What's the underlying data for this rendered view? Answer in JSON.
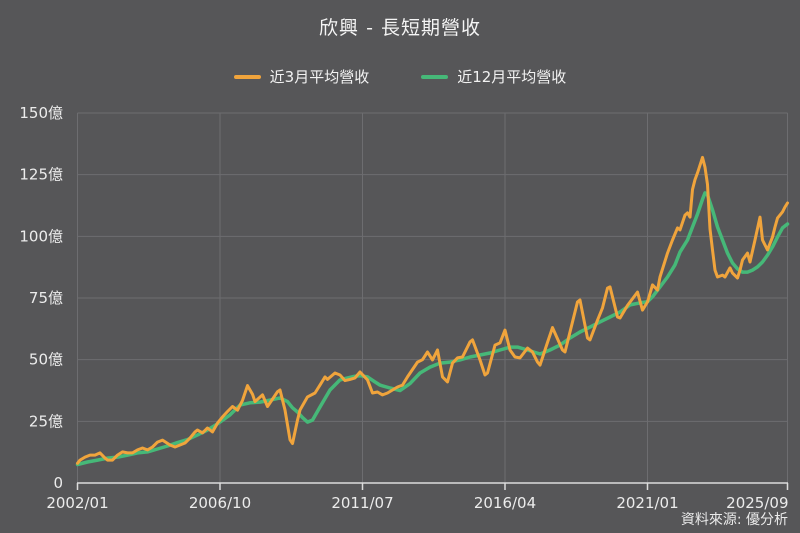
{
  "title": "欣興 - 長短期營收",
  "footer": {
    "source_label": "資料來源: 優分析"
  },
  "colors": {
    "background": "#565658",
    "grid": "#6d6d70",
    "axis": "#dcdcdc",
    "label_text": "#ececec",
    "title_text": "#f5f5f5",
    "series_orange": "#f0a43c",
    "series_green": "#46b878"
  },
  "chart_data": {
    "type": "line",
    "title": "欣興 - 長短期營收",
    "unit": "億",
    "grid": true,
    "legend_position": "top-center",
    "x_axis": {
      "unit": "month (offset from 2002/01)",
      "ticks": [
        {
          "m": 0,
          "label": "2002/01"
        },
        {
          "m": 57,
          "label": "2006/10"
        },
        {
          "m": 114,
          "label": "2011/07"
        },
        {
          "m": 171,
          "label": "2016/04"
        },
        {
          "m": 228,
          "label": "2021/01"
        },
        {
          "m": 284,
          "label": "2025/09"
        }
      ]
    },
    "y_axis": {
      "min": 0,
      "max": 150,
      "tick_step": 25,
      "tick_labels": [
        "0",
        "25億",
        "50億",
        "75億",
        "100億",
        "125億",
        "150億"
      ]
    },
    "series": [
      {
        "name": "近3月平均營收",
        "color": "#f0a43c",
        "points": [
          [
            0,
            8
          ],
          [
            1,
            9.3
          ],
          [
            3,
            10.5
          ],
          [
            5,
            11.3
          ],
          [
            7,
            11.3
          ],
          [
            9,
            12.2
          ],
          [
            11,
            10.1
          ],
          [
            12,
            9.3
          ],
          [
            14,
            9.3
          ],
          [
            16,
            11.3
          ],
          [
            18,
            12.6
          ],
          [
            20,
            12.2
          ],
          [
            22,
            12.2
          ],
          [
            24,
            13.4
          ],
          [
            26,
            14.2
          ],
          [
            28,
            13.4
          ],
          [
            30,
            14.6
          ],
          [
            32,
            16.6
          ],
          [
            34,
            17.4
          ],
          [
            37,
            15.4
          ],
          [
            39,
            14.6
          ],
          [
            41,
            15.4
          ],
          [
            43,
            16.2
          ],
          [
            45,
            18.2
          ],
          [
            47,
            20.7
          ],
          [
            48,
            21.5
          ],
          [
            50,
            20.3
          ],
          [
            52,
            22.3
          ],
          [
            54,
            20.7
          ],
          [
            56,
            24.3
          ],
          [
            58,
            26.8
          ],
          [
            60,
            29
          ],
          [
            62,
            31
          ],
          [
            64,
            29.5
          ],
          [
            66,
            33.5
          ],
          [
            68,
            39.5
          ],
          [
            70,
            36
          ],
          [
            71,
            33
          ],
          [
            74,
            35.7
          ],
          [
            76,
            31
          ],
          [
            78,
            34
          ],
          [
            80,
            37
          ],
          [
            81,
            37.7
          ],
          [
            83,
            29.6
          ],
          [
            85,
            17.5
          ],
          [
            86,
            16
          ],
          [
            88,
            25.5
          ],
          [
            89,
            29.6
          ],
          [
            92,
            34.9
          ],
          [
            95,
            36.5
          ],
          [
            97,
            39.7
          ],
          [
            99,
            43
          ],
          [
            100,
            42
          ],
          [
            103,
            44.6
          ],
          [
            105,
            43.8
          ],
          [
            107,
            41.5
          ],
          [
            109,
            42
          ],
          [
            111,
            42.6
          ],
          [
            113,
            45
          ],
          [
            116,
            41.8
          ],
          [
            118,
            36.5
          ],
          [
            120,
            36.9
          ],
          [
            122,
            35.7
          ],
          [
            124,
            36.5
          ],
          [
            128,
            38.9
          ],
          [
            130,
            39.7
          ],
          [
            132,
            43
          ],
          [
            136,
            49
          ],
          [
            138,
            50
          ],
          [
            140,
            53.1
          ],
          [
            142,
            49.9
          ],
          [
            144,
            53.9
          ],
          [
            146,
            43
          ],
          [
            148,
            41
          ],
          [
            150,
            48.6
          ],
          [
            152,
            50.7
          ],
          [
            154,
            51.1
          ],
          [
            157,
            57.2
          ],
          [
            158,
            58
          ],
          [
            161,
            49.9
          ],
          [
            163,
            43.8
          ],
          [
            164,
            44.6
          ],
          [
            167,
            55.9
          ],
          [
            169,
            56.8
          ],
          [
            171,
            62
          ],
          [
            173,
            53.9
          ],
          [
            175,
            51.1
          ],
          [
            177,
            50.7
          ],
          [
            180,
            54.7
          ],
          [
            182,
            53.1
          ],
          [
            184,
            49
          ],
          [
            185,
            47.8
          ],
          [
            188,
            57
          ],
          [
            190,
            63
          ],
          [
            194,
            53.9
          ],
          [
            195,
            53.1
          ],
          [
            200,
            73.4
          ],
          [
            201,
            74.2
          ],
          [
            204,
            58.8
          ],
          [
            205,
            58
          ],
          [
            208,
            66
          ],
          [
            210,
            71
          ],
          [
            212,
            79
          ],
          [
            213,
            79.5
          ],
          [
            216,
            67.3
          ],
          [
            217,
            66.9
          ],
          [
            220,
            72
          ],
          [
            224,
            77.4
          ],
          [
            226,
            70.1
          ],
          [
            228,
            73.4
          ],
          [
            230,
            80.3
          ],
          [
            232,
            78.2
          ],
          [
            233,
            83.5
          ],
          [
            236,
            93.2
          ],
          [
            238,
            98.5
          ],
          [
            240,
            103.4
          ],
          [
            241,
            102.6
          ],
          [
            243,
            108.6
          ],
          [
            244,
            109.5
          ],
          [
            245,
            107.8
          ],
          [
            246,
            119
          ],
          [
            247,
            123
          ],
          [
            248,
            125.7
          ],
          [
            250,
            132
          ],
          [
            251,
            128
          ],
          [
            252,
            121
          ],
          [
            253,
            103
          ],
          [
            254,
            94.5
          ],
          [
            255,
            86.3
          ],
          [
            256,
            83.5
          ],
          [
            258,
            84.3
          ],
          [
            259,
            83.5
          ],
          [
            261,
            87.2
          ],
          [
            262,
            85.1
          ],
          [
            264,
            83.1
          ],
          [
            265,
            86.3
          ],
          [
            266,
            90.4
          ],
          [
            268,
            93.2
          ],
          [
            269,
            89.6
          ],
          [
            271,
            98.5
          ],
          [
            273,
            107.8
          ],
          [
            274,
            98.5
          ],
          [
            276,
            94.5
          ],
          [
            278,
            99.7
          ],
          [
            279,
            103.8
          ],
          [
            280,
            107.4
          ],
          [
            282,
            109.9
          ],
          [
            283,
            111.9
          ],
          [
            284,
            113.5
          ]
        ]
      },
      {
        "name": "近12月平均營收",
        "color": "#46b878",
        "points": [
          [
            0,
            7.5
          ],
          [
            4,
            8.5
          ],
          [
            8,
            9.3
          ],
          [
            12,
            10.1
          ],
          [
            16,
            10.5
          ],
          [
            20,
            11.3
          ],
          [
            24,
            12.2
          ],
          [
            28,
            12.6
          ],
          [
            32,
            13.8
          ],
          [
            36,
            15
          ],
          [
            40,
            16.4
          ],
          [
            44,
            17.6
          ],
          [
            48,
            19.5
          ],
          [
            52,
            21.5
          ],
          [
            56,
            24
          ],
          [
            61,
            27.6
          ],
          [
            65,
            31.6
          ],
          [
            69,
            32.5
          ],
          [
            73,
            32.8
          ],
          [
            77,
            33.6
          ],
          [
            81,
            34.5
          ],
          [
            84,
            33
          ],
          [
            86,
            30.5
          ],
          [
            88,
            28.8
          ],
          [
            90,
            26.5
          ],
          [
            92,
            24.7
          ],
          [
            94,
            25.5
          ],
          [
            97,
            30.8
          ],
          [
            101,
            37.7
          ],
          [
            105,
            41.8
          ],
          [
            108,
            42.6
          ],
          [
            111,
            43.3
          ],
          [
            113,
            43.5
          ],
          [
            116,
            43
          ],
          [
            119,
            41
          ],
          [
            121,
            39.7
          ],
          [
            125,
            38.5
          ],
          [
            129,
            37.5
          ],
          [
            133,
            40.3
          ],
          [
            137,
            44.6
          ],
          [
            141,
            47
          ],
          [
            145,
            48.6
          ],
          [
            149,
            49
          ],
          [
            153,
            49.9
          ],
          [
            157,
            51.1
          ],
          [
            161,
            51.9
          ],
          [
            165,
            52.7
          ],
          [
            169,
            53.9
          ],
          [
            173,
            55.1
          ],
          [
            176,
            55.1
          ],
          [
            180,
            53.9
          ],
          [
            185,
            52.3
          ],
          [
            189,
            53.9
          ],
          [
            193,
            55.9
          ],
          [
            197,
            58.8
          ],
          [
            201,
            61.2
          ],
          [
            205,
            63.2
          ],
          [
            209,
            65.3
          ],
          [
            213,
            67.3
          ],
          [
            217,
            69.3
          ],
          [
            221,
            72.2
          ],
          [
            225,
            73
          ],
          [
            228,
            73.5
          ],
          [
            230,
            75.5
          ],
          [
            233,
            79.5
          ],
          [
            236,
            83.5
          ],
          [
            239,
            88.4
          ],
          [
            241,
            93.6
          ],
          [
            244,
            98.5
          ],
          [
            246,
            103.8
          ],
          [
            248,
            109
          ],
          [
            250,
            115
          ],
          [
            251,
            117.6
          ],
          [
            252,
            116.8
          ],
          [
            254,
            110.7
          ],
          [
            256,
            103.8
          ],
          [
            258,
            98.5
          ],
          [
            260,
            93.2
          ],
          [
            262,
            89.2
          ],
          [
            264,
            86.8
          ],
          [
            266,
            85.5
          ],
          [
            268,
            85.5
          ],
          [
            270,
            86.3
          ],
          [
            272,
            87.6
          ],
          [
            274,
            89.6
          ],
          [
            276,
            92.4
          ],
          [
            278,
            95.7
          ],
          [
            280,
            99.7
          ],
          [
            282,
            103.4
          ],
          [
            284,
            105
          ]
        ]
      }
    ]
  }
}
